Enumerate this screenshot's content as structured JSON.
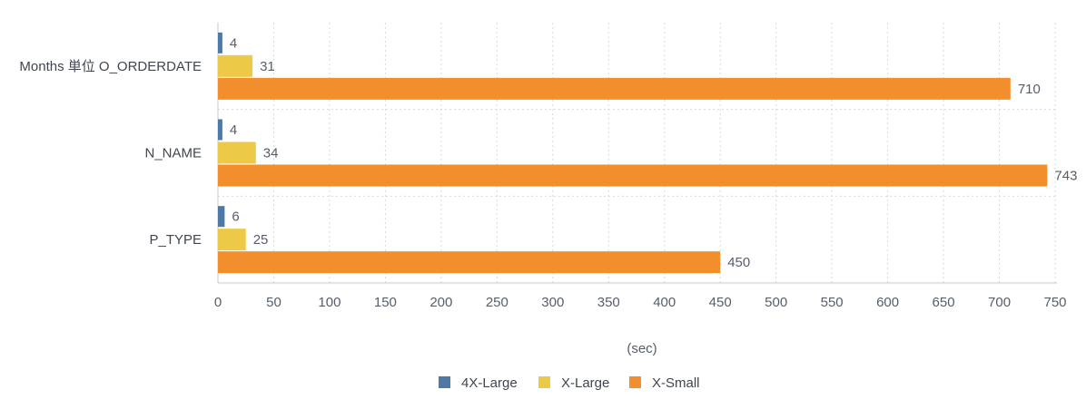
{
  "chart_data": {
    "type": "bar",
    "orientation": "horizontal",
    "categories": [
      "Months 単位 O_ORDERDATE",
      "N_NAME",
      "P_TYPE"
    ],
    "series": [
      {
        "name": "4X-Large",
        "color": "#4e79a7",
        "values": [
          4,
          4,
          6
        ]
      },
      {
        "name": "X-Large",
        "color": "#edc948",
        "values": [
          31,
          34,
          25
        ]
      },
      {
        "name": "X-Small",
        "color": "#f28e2b",
        "values": [
          710,
          743,
          450
        ]
      }
    ],
    "xlabel": "(sec)",
    "ylabel": "",
    "xlim": [
      0,
      750
    ],
    "xticks": [
      0,
      50,
      100,
      150,
      200,
      250,
      300,
      350,
      400,
      450,
      500,
      550,
      600,
      650,
      700,
      750
    ],
    "grid": true,
    "legend_position": "bottom-center"
  }
}
